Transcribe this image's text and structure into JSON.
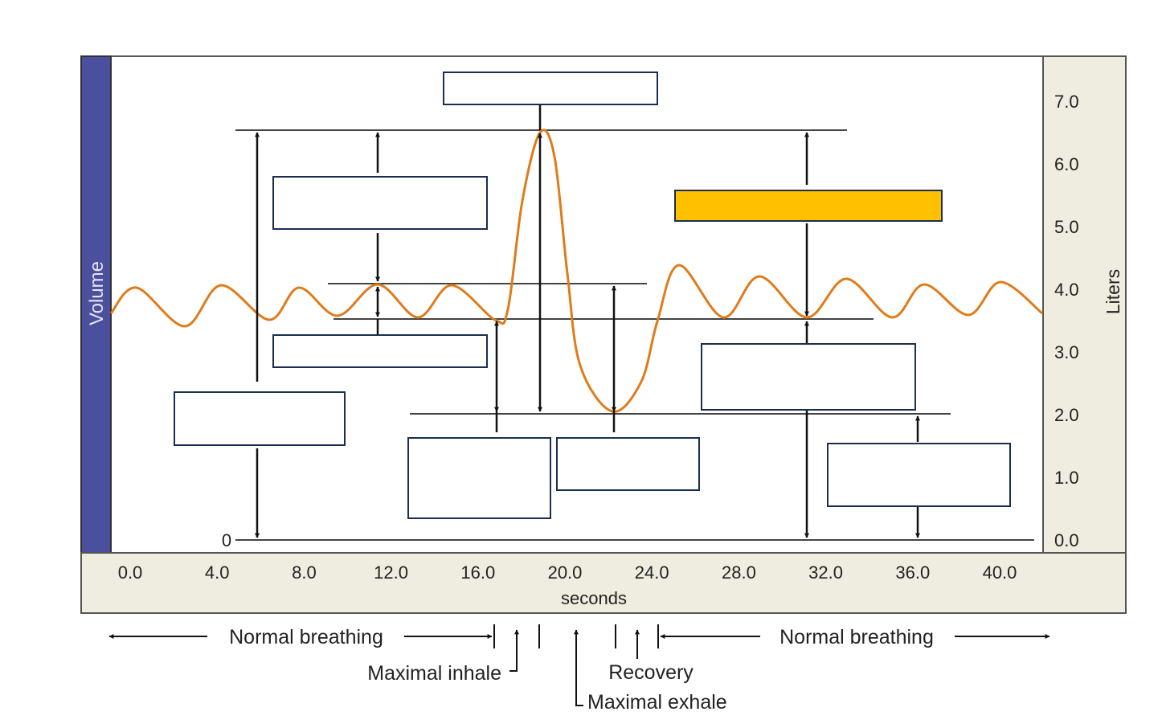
{
  "axis": {
    "left_label": "Volume",
    "right_label": "Liters",
    "x_label": "seconds",
    "y_ticks": [
      "7.0",
      "6.0",
      "5.0",
      "4.0",
      "3.0",
      "2.0",
      "1.0",
      "0.0"
    ],
    "x_ticks": [
      "0.0",
      "4.0",
      "8.0",
      "12.0",
      "16.0",
      "20.0",
      "24.0",
      "28.0",
      "32.0",
      "36.0",
      "40.0"
    ],
    "zero_label": "0"
  },
  "annotations": {
    "normal_breathing_left": "Normal breathing",
    "normal_breathing_right": "Normal breathing",
    "maximal_inhale": "Maximal inhale",
    "recovery": "Recovery",
    "maximal_exhale": "Maximal exhale"
  },
  "label_boxes": [
    {
      "id": "box-top",
      "value": ""
    },
    {
      "id": "box-upper-left",
      "value": ""
    },
    {
      "id": "box-middle-left",
      "value": ""
    },
    {
      "id": "box-left",
      "value": ""
    },
    {
      "id": "box-bottom-center-left",
      "value": ""
    },
    {
      "id": "box-bottom-center-right",
      "value": ""
    },
    {
      "id": "box-highlighted",
      "value": "",
      "highlighted": true
    },
    {
      "id": "box-right-middle",
      "value": ""
    },
    {
      "id": "box-right-bottom",
      "value": ""
    }
  ],
  "colors": {
    "curve": "#E07B1A",
    "left_bar": "#4A4F9E",
    "panel": "#EFEDDF",
    "box_border": "#1A2E50",
    "highlight": "#FFC000"
  }
}
